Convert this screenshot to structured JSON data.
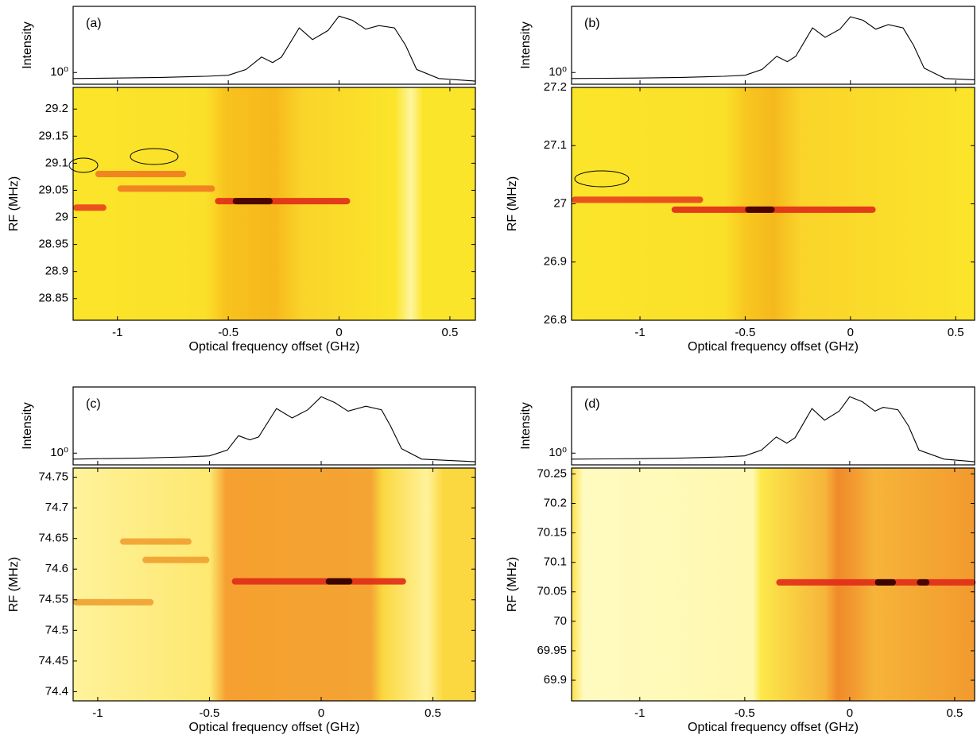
{
  "chart_data": [
    {
      "type": "line",
      "panel_label": "(a)",
      "ylabel": "Intensity",
      "log_y": true,
      "color": "#000000",
      "xlim": [
        -1.2,
        0.615
      ],
      "xticks": [
        -1,
        -0.5,
        0,
        0.5
      ],
      "ylim": [
        0.5,
        50
      ],
      "yticks": [
        {
          "value": 1,
          "label": "10⁰"
        }
      ],
      "x": [
        -1.2,
        -1,
        -0.8,
        -0.6,
        -0.5,
        -0.42,
        -0.35,
        -0.3,
        -0.26,
        -0.18,
        -0.12,
        -0.05,
        0,
        0.06,
        0.12,
        0.18,
        0.25,
        0.3,
        0.35,
        0.45,
        0.615
      ],
      "values": [
        0.7,
        0.72,
        0.75,
        0.8,
        0.85,
        1.2,
        2.5,
        1.8,
        2.5,
        14,
        7,
        12,
        28,
        22,
        13,
        16,
        14,
        5,
        1.2,
        0.7,
        0.6
      ]
    },
    {
      "type": "spectrogram",
      "xlabel": "Optical frequency offset (GHz)",
      "ylabel": "RF (MHz)",
      "xlim": [
        -1.2,
        0.615
      ],
      "xticks": [
        -1,
        -0.5,
        0,
        0.5
      ],
      "ylim": [
        28.81,
        29.24
      ],
      "yticks": [
        28.85,
        28.9,
        28.95,
        29,
        29.05,
        29.1,
        29.15,
        29.2
      ],
      "streaks": [
        {
          "x": [
            -1.2,
            -1.05
          ],
          "y": 29.018,
          "color": "#e8401c"
        },
        {
          "x": [
            -1.1,
            -0.69
          ],
          "y": 29.08,
          "color": "#f07a20"
        },
        {
          "x": [
            -1,
            -0.56
          ],
          "y": 29.053,
          "color": "#f07a20"
        },
        {
          "x": [
            -0.56,
            0.05
          ],
          "y": 29.03,
          "color": "#e02a18"
        },
        {
          "x": [
            -0.48,
            -0.3
          ],
          "y": 29.03,
          "color": "#3a0000"
        }
      ]
    },
    {
      "type": "line",
      "panel_label": "(b)",
      "ylabel": "Intensity",
      "log_y": true,
      "color": "#000000",
      "xlim": [
        -1.325,
        0.59
      ],
      "xticks": [
        -1,
        -0.5,
        0,
        0.5
      ],
      "ylim": [
        0.5,
        50
      ],
      "yticks": [
        {
          "value": 1,
          "label": "10⁰"
        }
      ],
      "x": [
        -1.325,
        -1,
        -0.8,
        -0.6,
        -0.5,
        -0.42,
        -0.35,
        -0.3,
        -0.26,
        -0.18,
        -0.12,
        -0.05,
        0,
        0.06,
        0.12,
        0.18,
        0.25,
        0.3,
        0.35,
        0.45,
        0.59
      ],
      "values": [
        0.7,
        0.72,
        0.75,
        0.8,
        0.85,
        1.2,
        2.6,
        1.9,
        2.6,
        14,
        8,
        13,
        27,
        22,
        13,
        17,
        14,
        5,
        1.3,
        0.7,
        0.65
      ]
    },
    {
      "type": "spectrogram",
      "xlabel": "Optical frequency offset (GHz)",
      "ylabel": "RF (MHz)",
      "xlim": [
        -1.325,
        0.59
      ],
      "xticks": [
        -1,
        -0.5,
        0,
        0.5
      ],
      "ylim": [
        26.8,
        27.2
      ],
      "yticks": [
        26.8,
        26.9,
        27,
        27.1,
        27.2
      ],
      "streaks": [
        {
          "x": [
            -1.325,
            -0.7
          ],
          "y": 27.007,
          "color": "#e8401c"
        },
        {
          "x": [
            -0.85,
            0.12
          ],
          "y": 26.99,
          "color": "#e02a18"
        },
        {
          "x": [
            -0.5,
            -0.36
          ],
          "y": 26.99,
          "color": "#3a0000"
        }
      ]
    },
    {
      "type": "line",
      "panel_label": "(c)",
      "ylabel": "Intensity",
      "log_y": true,
      "color": "#000000",
      "xlim": [
        -1.11,
        0.69
      ],
      "xticks": [
        -1,
        -0.5,
        0,
        0.5
      ],
      "ylim": [
        0.5,
        50
      ],
      "yticks": [
        {
          "value": 1,
          "label": "10⁰"
        }
      ],
      "x": [
        -1.11,
        -1,
        -0.8,
        -0.6,
        -0.5,
        -0.42,
        -0.37,
        -0.32,
        -0.28,
        -0.2,
        -0.13,
        -0.06,
        0,
        0.06,
        0.12,
        0.2,
        0.27,
        0.31,
        0.36,
        0.45,
        0.69
      ],
      "values": [
        0.7,
        0.72,
        0.75,
        0.8,
        0.85,
        1.2,
        2.8,
        2.2,
        2.6,
        14,
        8,
        13,
        28,
        20,
        12,
        16,
        13,
        5,
        1.3,
        0.7,
        0.6
      ]
    },
    {
      "type": "spectrogram",
      "xlabel": "Optical frequency offset (GHz)",
      "ylabel": "RF (MHz)",
      "xlim": [
        -1.11,
        0.69
      ],
      "xticks": [
        -1,
        -0.5,
        0,
        0.5
      ],
      "ylim": [
        74.385,
        74.765
      ],
      "yticks": [
        74.4,
        74.45,
        74.5,
        74.55,
        74.6,
        74.65,
        74.7,
        74.75
      ],
      "streaks": [
        {
          "x": [
            -1.11,
            -0.75
          ],
          "y": 74.546,
          "color": "#f0a030"
        },
        {
          "x": [
            -0.9,
            -0.58
          ],
          "y": 74.645,
          "color": "#f0a030"
        },
        {
          "x": [
            -0.8,
            -0.5
          ],
          "y": 74.615,
          "color": "#f0a030"
        },
        {
          "x": [
            -0.4,
            0.38
          ],
          "y": 74.58,
          "color": "#e02a18"
        },
        {
          "x": [
            0.02,
            0.14
          ],
          "y": 74.58,
          "color": "#2a0000"
        }
      ]
    },
    {
      "type": "line",
      "panel_label": "(d)",
      "ylabel": "Intensity",
      "log_y": true,
      "color": "#000000",
      "xlim": [
        -1.325,
        0.595
      ],
      "xticks": [
        -1,
        -0.5,
        0,
        0.5
      ],
      "ylim": [
        0.5,
        50
      ],
      "yticks": [
        {
          "value": 1,
          "label": "10⁰"
        }
      ],
      "x": [
        -1.325,
        -1,
        -0.8,
        -0.6,
        -0.5,
        -0.42,
        -0.35,
        -0.3,
        -0.26,
        -0.18,
        -0.12,
        -0.05,
        0,
        0.06,
        0.12,
        0.16,
        0.23,
        0.28,
        0.33,
        0.45,
        0.595
      ],
      "values": [
        0.7,
        0.72,
        0.75,
        0.8,
        0.85,
        1.2,
        2.6,
        1.8,
        2.5,
        14,
        7,
        12,
        28,
        21,
        12,
        15,
        13,
        5,
        1.2,
        0.7,
        0.6
      ]
    },
    {
      "type": "spectrogram",
      "xlabel": "Optical frequency offset (GHz)",
      "ylabel": "RF (MHz)",
      "xlim": [
        -1.325,
        0.595
      ],
      "xticks": [
        -1,
        -0.5,
        0,
        0.5
      ],
      "ylim": [
        69.865,
        70.26
      ],
      "yticks": [
        69.9,
        69.95,
        70,
        70.05,
        70.1,
        70.15,
        70.2,
        70.25
      ],
      "streaks": [
        {
          "x": [
            -0.35,
            0.6
          ],
          "y": 70.066,
          "color": "#e02a18"
        },
        {
          "x": [
            0.12,
            0.22
          ],
          "y": 70.066,
          "color": "#2a0000"
        },
        {
          "x": [
            0.32,
            0.38
          ],
          "y": 70.066,
          "color": "#3a0000"
        }
      ]
    }
  ]
}
